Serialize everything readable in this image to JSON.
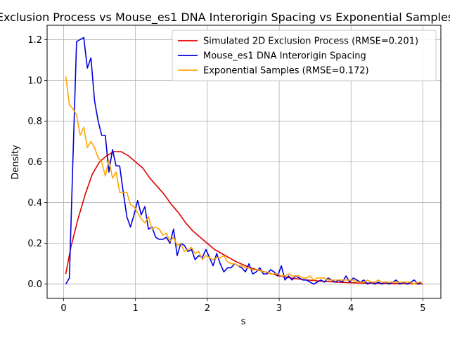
{
  "chart_data": {
    "type": "line",
    "title": "Exclusion Process vs Mouse_es1 DNA Interorigin Spacing vs Exponential Samples",
    "xlabel": "s",
    "ylabel": "Density",
    "xlim": [
      -0.23,
      5.25
    ],
    "ylim": [
      -0.07,
      1.27
    ],
    "xticks": [
      0,
      1,
      2,
      3,
      4,
      5
    ],
    "yticks": [
      0.0,
      0.2,
      0.4,
      0.6,
      0.8,
      1.0,
      1.2
    ],
    "xtick_labels": [
      "0",
      "1",
      "2",
      "3",
      "4",
      "5"
    ],
    "ytick_labels": [
      "0.0",
      "0.2",
      "0.4",
      "0.6",
      "0.8",
      "1.0",
      "1.2"
    ],
    "grid": true,
    "legend_position": "top-right",
    "series": [
      {
        "name": "Simulated 2D Exclusion Process (RMSE=0.201)",
        "color": "#e00000",
        "x": [
          0.03,
          0.1,
          0.2,
          0.3,
          0.4,
          0.5,
          0.6,
          0.7,
          0.8,
          0.9,
          1.0,
          1.1,
          1.2,
          1.3,
          1.4,
          1.5,
          1.6,
          1.7,
          1.8,
          1.9,
          2.0,
          2.1,
          2.2,
          2.3,
          2.4,
          2.5,
          2.6,
          2.7,
          2.8,
          2.9,
          3.0,
          3.2,
          3.4,
          3.6,
          3.8,
          4.0,
          4.2,
          4.4,
          4.6,
          4.8,
          5.0
        ],
        "y": [
          0.05,
          0.18,
          0.32,
          0.44,
          0.54,
          0.6,
          0.63,
          0.65,
          0.65,
          0.63,
          0.6,
          0.57,
          0.52,
          0.48,
          0.44,
          0.39,
          0.35,
          0.3,
          0.26,
          0.23,
          0.2,
          0.17,
          0.15,
          0.13,
          0.11,
          0.095,
          0.08,
          0.07,
          0.06,
          0.05,
          0.04,
          0.028,
          0.02,
          0.014,
          0.01,
          0.007,
          0.005,
          0.004,
          0.003,
          0.002,
          0.001
        ]
      },
      {
        "name": "Mouse_es1 DNA Interorigin Spacing",
        "color": "#0000dd",
        "x": [
          0.03,
          0.08,
          0.13,
          0.18,
          0.23,
          0.28,
          0.33,
          0.38,
          0.43,
          0.48,
          0.53,
          0.58,
          0.63,
          0.68,
          0.73,
          0.78,
          0.83,
          0.88,
          0.93,
          0.98,
          1.03,
          1.08,
          1.13,
          1.18,
          1.23,
          1.28,
          1.33,
          1.38,
          1.43,
          1.48,
          1.53,
          1.58,
          1.63,
          1.68,
          1.73,
          1.78,
          1.83,
          1.88,
          1.93,
          1.98,
          2.03,
          2.08,
          2.13,
          2.18,
          2.23,
          2.28,
          2.33,
          2.38,
          2.43,
          2.48,
          2.53,
          2.58,
          2.63,
          2.68,
          2.73,
          2.78,
          2.83,
          2.88,
          2.93,
          2.98,
          3.03,
          3.08,
          3.13,
          3.18,
          3.23,
          3.28,
          3.33,
          3.38,
          3.43,
          3.48,
          3.53,
          3.58,
          3.63,
          3.68,
          3.73,
          3.78,
          3.83,
          3.88,
          3.93,
          3.98,
          4.03,
          4.08,
          4.13,
          4.18,
          4.23,
          4.28,
          4.33,
          4.38,
          4.43,
          4.48,
          4.53,
          4.58,
          4.63,
          4.68,
          4.73,
          4.78,
          4.83,
          4.88,
          4.93,
          4.98
        ],
        "y": [
          0.0,
          0.03,
          0.62,
          1.19,
          1.2,
          1.21,
          1.06,
          1.11,
          0.9,
          0.8,
          0.73,
          0.73,
          0.55,
          0.66,
          0.58,
          0.58,
          0.45,
          0.33,
          0.28,
          0.34,
          0.41,
          0.34,
          0.38,
          0.27,
          0.28,
          0.23,
          0.22,
          0.22,
          0.23,
          0.2,
          0.27,
          0.14,
          0.2,
          0.19,
          0.16,
          0.17,
          0.12,
          0.14,
          0.13,
          0.17,
          0.13,
          0.09,
          0.15,
          0.1,
          0.06,
          0.08,
          0.08,
          0.1,
          0.09,
          0.08,
          0.06,
          0.1,
          0.05,
          0.06,
          0.08,
          0.05,
          0.05,
          0.07,
          0.06,
          0.04,
          0.09,
          0.02,
          0.04,
          0.02,
          0.04,
          0.03,
          0.02,
          0.02,
          0.01,
          0.0,
          0.01,
          0.02,
          0.01,
          0.03,
          0.02,
          0.01,
          0.02,
          0.01,
          0.04,
          0.01,
          0.03,
          0.02,
          0.01,
          0.02,
          0.0,
          0.01,
          0.0,
          0.01,
          0.0,
          0.01,
          0.0,
          0.01,
          0.02,
          0.0,
          0.01,
          0.0,
          0.01,
          0.02,
          0.0,
          0.01
        ]
      },
      {
        "name": "Exponential Samples (RMSE=0.172)",
        "color": "#ffa500",
        "x": [
          0.03,
          0.08,
          0.13,
          0.18,
          0.23,
          0.28,
          0.33,
          0.38,
          0.43,
          0.48,
          0.53,
          0.58,
          0.63,
          0.68,
          0.73,
          0.78,
          0.83,
          0.88,
          0.93,
          0.98,
          1.03,
          1.08,
          1.13,
          1.18,
          1.23,
          1.28,
          1.33,
          1.38,
          1.43,
          1.48,
          1.53,
          1.58,
          1.63,
          1.68,
          1.73,
          1.78,
          1.83,
          1.88,
          1.93,
          1.98,
          2.03,
          2.08,
          2.13,
          2.18,
          2.23,
          2.28,
          2.33,
          2.38,
          2.43,
          2.48,
          2.53,
          2.58,
          2.63,
          2.68,
          2.73,
          2.78,
          2.83,
          2.88,
          2.93,
          2.98,
          3.03,
          3.08,
          3.13,
          3.18,
          3.23,
          3.28,
          3.33,
          3.38,
          3.43,
          3.48,
          3.53,
          3.58,
          3.63,
          3.68,
          3.73,
          3.78,
          3.83,
          3.88,
          3.93,
          3.98,
          4.03,
          4.08,
          4.13,
          4.18,
          4.23,
          4.28,
          4.33,
          4.38,
          4.43,
          4.48,
          4.53,
          4.58,
          4.63,
          4.68,
          4.73,
          4.78,
          4.83,
          4.88,
          4.93,
          4.98
        ],
        "y": [
          1.02,
          0.88,
          0.86,
          0.83,
          0.73,
          0.77,
          0.67,
          0.7,
          0.67,
          0.62,
          0.6,
          0.53,
          0.61,
          0.52,
          0.55,
          0.45,
          0.45,
          0.45,
          0.39,
          0.38,
          0.35,
          0.32,
          0.3,
          0.33,
          0.27,
          0.28,
          0.27,
          0.24,
          0.25,
          0.21,
          0.23,
          0.19,
          0.2,
          0.16,
          0.17,
          0.18,
          0.15,
          0.16,
          0.12,
          0.14,
          0.13,
          0.12,
          0.13,
          0.13,
          0.14,
          0.11,
          0.1,
          0.1,
          0.09,
          0.09,
          0.08,
          0.08,
          0.07,
          0.07,
          0.07,
          0.06,
          0.06,
          0.05,
          0.05,
          0.05,
          0.04,
          0.04,
          0.05,
          0.04,
          0.04,
          0.04,
          0.03,
          0.03,
          0.04,
          0.02,
          0.03,
          0.03,
          0.03,
          0.02,
          0.02,
          0.02,
          0.02,
          0.02,
          0.02,
          0.02,
          0.02,
          0.01,
          0.01,
          0.01,
          0.02,
          0.01,
          0.01,
          0.02,
          0.01,
          0.01,
          0.01,
          0.01,
          0.01,
          0.01,
          0.01,
          0.01,
          0.01,
          0.0,
          0.01,
          0.01
        ]
      }
    ]
  }
}
